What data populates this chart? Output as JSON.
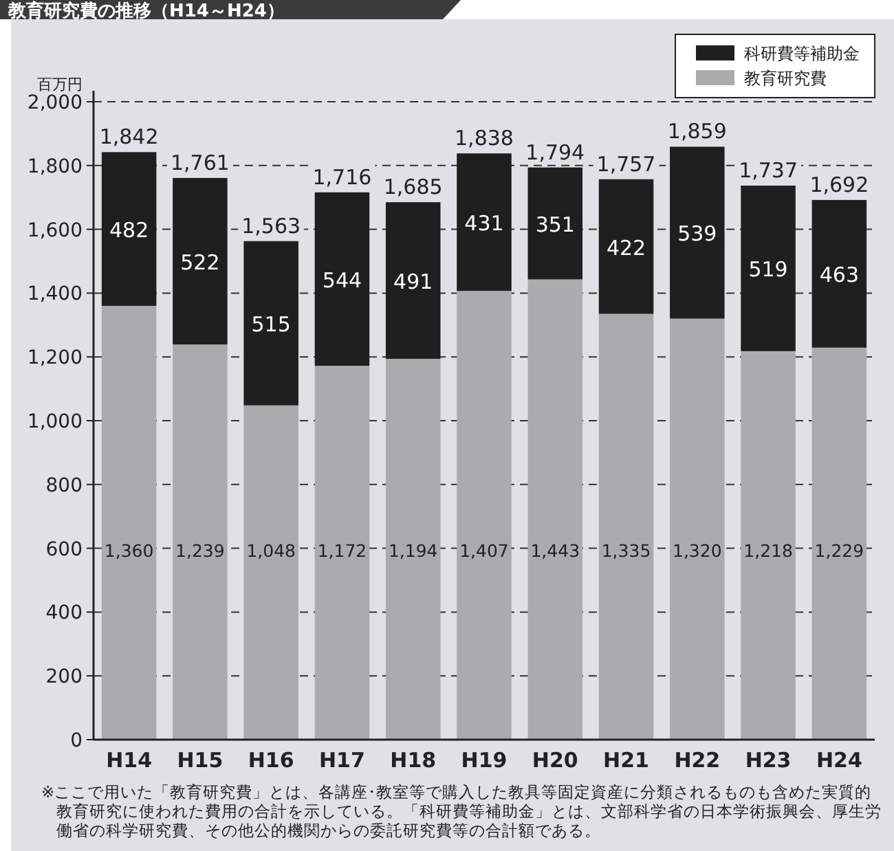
{
  "chart_data": {
    "type": "bar",
    "stacked": true,
    "title": "教育研究費の推移（H14～H24）",
    "ylabel": "百万円",
    "categories": [
      "H14",
      "H15",
      "H16",
      "H17",
      "H18",
      "H19",
      "H20",
      "H21",
      "H22",
      "H23",
      "H24"
    ],
    "series": [
      {
        "name": "教育研究費",
        "color": "#a9abae",
        "values": [
          1360,
          1239,
          1048,
          1172,
          1194,
          1407,
          1443,
          1335,
          1320,
          1218,
          1229
        ],
        "value_labels": [
          "1,360",
          "1,239",
          "1,048",
          "1,172",
          "1,194",
          "1,407",
          "1,443",
          "1,335",
          "1,320",
          "1,218",
          "1,229"
        ]
      },
      {
        "name": "科研費等補助金",
        "color": "#1f1f1f",
        "values": [
          482,
          522,
          515,
          544,
          491,
          431,
          351,
          422,
          539,
          519,
          463
        ],
        "value_labels": [
          "482",
          "522",
          "515",
          "544",
          "491",
          "431",
          "351",
          "422",
          "539",
          "519",
          "463"
        ]
      }
    ],
    "totals": [
      "1,842",
      "1,761",
      "1,563",
      "1,716",
      "1,685",
      "1,838",
      "1,794",
      "1,757",
      "1,859",
      "1,737",
      "1,692"
    ],
    "ylim": [
      0,
      2000
    ],
    "yticks": [
      0,
      {
        "value": 200,
        "label": "200"
      },
      {
        "value": 400,
        "label": "400"
      },
      {
        "value": 600,
        "label": "600"
      },
      {
        "value": 800,
        "label": "800"
      },
      {
        "value": 1000,
        "label": "1,000"
      },
      {
        "value": 1200,
        "label": "1,200"
      },
      {
        "value": 1400,
        "label": "1,400"
      },
      {
        "value": 1600,
        "label": "1,600"
      },
      {
        "value": 1800,
        "label": "1,800"
      },
      {
        "value": 2000,
        "label": "2,000"
      }
    ],
    "grid": "y",
    "legend": "top right",
    "annotations": [
      "※ここで用いた「教育研究費」とは、各講座･教室等で購入した教具等固定資産に分類されるものも含めた実質的教育研究に使われた費用の合計を示している。「科研費等補助金」とは、文部科学省の日本学術振興会、厚生労働省の科学研究費、その他公的機関からの委託研究費等の合計額である。"
    ]
  }
}
